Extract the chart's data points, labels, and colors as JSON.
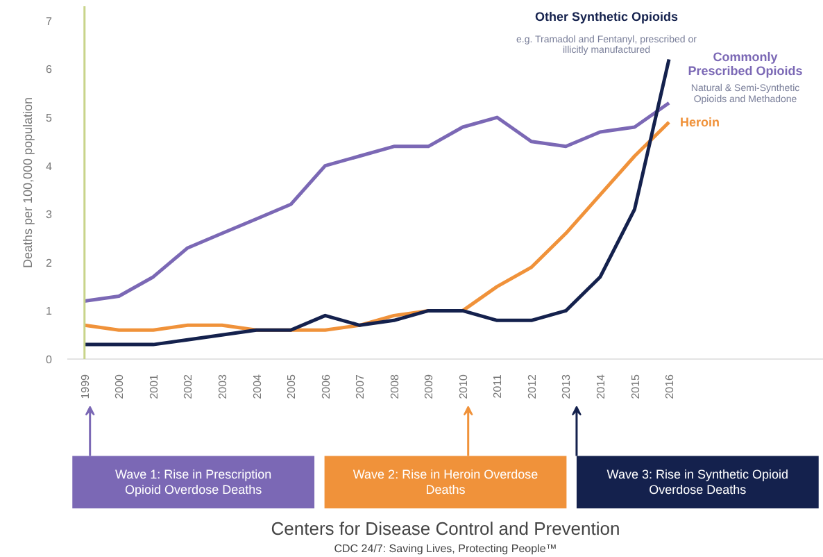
{
  "chart_data": {
    "type": "line",
    "ylabel": "Deaths per 100,000 population",
    "x": [
      1999,
      2000,
      2001,
      2002,
      2003,
      2004,
      2005,
      2006,
      2007,
      2008,
      2009,
      2010,
      2011,
      2012,
      2013,
      2014,
      2015,
      2016
    ],
    "xlim": [
      1998.5,
      2020.5
    ],
    "xticks": [
      1999,
      2000,
      2001,
      2002,
      2003,
      2004,
      2005,
      2006,
      2007,
      2008,
      2009,
      2010,
      2011,
      2012,
      2013,
      2014,
      2015,
      2016
    ],
    "ylim": [
      0,
      7.3
    ],
    "yticks": [
      0,
      1,
      2,
      3,
      4,
      5,
      6,
      7
    ],
    "grid": false,
    "legend": false,
    "line_style": "solid",
    "series": [
      {
        "name": "Commonly Prescribed Opioids",
        "color": "#7b68b5",
        "values": [
          1.2,
          1.3,
          1.7,
          2.3,
          2.6,
          2.9,
          3.2,
          4.0,
          4.2,
          4.4,
          4.4,
          4.8,
          5.0,
          4.5,
          4.4,
          4.7,
          4.8,
          5.3
        ]
      },
      {
        "name": "Heroin",
        "color": "#f0923a",
        "values": [
          0.7,
          0.6,
          0.6,
          0.7,
          0.7,
          0.6,
          0.6,
          0.6,
          0.7,
          0.9,
          1.0,
          1.0,
          1.5,
          1.9,
          2.6,
          3.4,
          4.2,
          4.9
        ]
      },
      {
        "name": "Other Synthetic Opioids",
        "color": "#14214d",
        "values": [
          0.3,
          0.3,
          0.3,
          0.4,
          0.5,
          0.6,
          0.6,
          0.9,
          0.7,
          0.8,
          1.0,
          1.0,
          0.8,
          0.8,
          1.0,
          1.7,
          3.1,
          6.2
        ]
      }
    ],
    "ref_lines": [
      {
        "axis": "x",
        "value": 1999,
        "color": "#c8d48a"
      }
    ],
    "annotations": [
      "e.g. Tramadol and Fentanyl, prescribed or illicitly manufactured",
      "Natural & Semi-Synthetic Opioids and Methadone",
      "Wave 1: Rise in Prescription Opioid Overdose Deaths",
      "Wave 2: Rise in Heroin Overdose Deaths",
      "Wave 3: Rise in Synthetic Opioid Overdose Deaths",
      "Centers for Disease Control and Prevention",
      "CDC 24/7: Saving Lives, Protecting People™"
    ]
  }
}
